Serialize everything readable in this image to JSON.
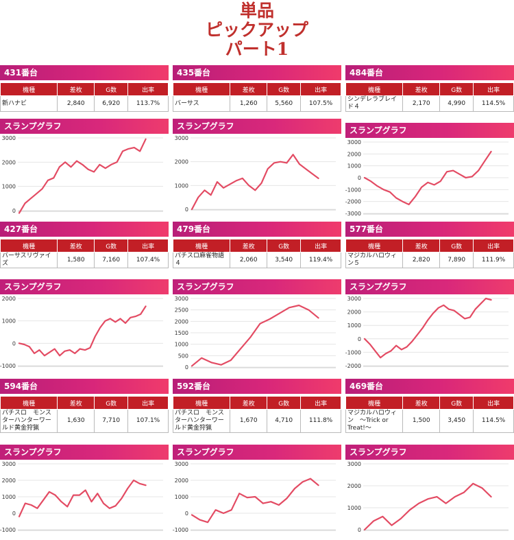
{
  "title_lines": [
    "単品",
    "ピックアップ",
    "パート1"
  ],
  "table_headers": [
    "機種",
    "差枚",
    "G数",
    "出率"
  ],
  "graph_label": "スランプグラフ",
  "line_color": "#e34b63",
  "panels": [
    {
      "machine_no": "431番台",
      "model": "新ハナビ",
      "diff": "2,840",
      "games": "6,920",
      "rate": "113.7%"
    },
    {
      "machine_no": "435番台",
      "model": "バーサス",
      "diff": "1,260",
      "games": "5,560",
      "rate": "107.5%"
    },
    {
      "machine_no": "484番台",
      "model": "シンデレラブレイド４",
      "diff": "2,170",
      "games": "4,990",
      "rate": "114.5%"
    },
    {
      "machine_no": "427番台",
      "model": "バーサスリヴァイズ",
      "diff": "1,580",
      "games": "7,160",
      "rate": "107.4%"
    },
    {
      "machine_no": "479番台",
      "model": "パチスロ麻雀物語４",
      "diff": "2,060",
      "games": "3,540",
      "rate": "119.4%"
    },
    {
      "machine_no": "577番台",
      "model": "マジカルハロウィン５",
      "diff": "2,820",
      "games": "7,890",
      "rate": "111.9%"
    },
    {
      "machine_no": "594番台",
      "model": "パチスロ　モンスターハンターワールド黄金狩猟",
      "diff": "1,630",
      "games": "7,710",
      "rate": "107.1%"
    },
    {
      "machine_no": "592番台",
      "model": "パチスロ　モンスターハンターワールド黄金狩猟",
      "diff": "1,670",
      "games": "4,710",
      "rate": "111.8%"
    },
    {
      "machine_no": "469番台",
      "model": "マジカルハロウィン　～Trick or Treat!～",
      "diff": "1,500",
      "games": "3,450",
      "rate": "114.5%"
    }
  ],
  "chart_data": [
    {
      "type": "line",
      "ylim": [
        0,
        3000
      ],
      "yticks": [
        "3000",
        "2000",
        "1000",
        "0"
      ],
      "y": [
        -100,
        300,
        500,
        700,
        900,
        1250,
        1350,
        1800,
        2000,
        1800,
        2050,
        1900,
        1700,
        1600,
        1900,
        1750,
        1900,
        2000,
        2450,
        2550,
        2600,
        2450,
        2950
      ]
    },
    {
      "type": "line",
      "ylim": [
        0,
        3000
      ],
      "yticks": [
        "3000",
        "2000",
        "1000",
        "0"
      ],
      "y": [
        0,
        500,
        800,
        600,
        1150,
        900,
        1050,
        1200,
        1300,
        1000,
        800,
        1100,
        1700,
        1950,
        2000,
        1950,
        2300,
        1900,
        1700,
        1500,
        1300
      ]
    },
    {
      "type": "line",
      "ylim": [
        -3000,
        3000
      ],
      "yticks": [
        "3000",
        "2000",
        "1000",
        "0",
        "-1000",
        "-2000",
        "-3000"
      ],
      "y": [
        0,
        -300,
        -700,
        -1000,
        -1200,
        -1700,
        -2000,
        -2250,
        -1600,
        -800,
        -400,
        -600,
        -300,
        500,
        600,
        300,
        0,
        100,
        600,
        1400,
        2200
      ]
    },
    {
      "type": "line",
      "ylim": [
        -1000,
        2000
      ],
      "yticks": [
        "2000",
        "1000",
        "0",
        "-1000"
      ],
      "y": [
        0,
        -50,
        -150,
        -450,
        -300,
        -550,
        -400,
        -250,
        -550,
        -350,
        -300,
        -450,
        -250,
        -300,
        -200,
        300,
        700,
        1000,
        1100,
        950,
        1100,
        900,
        1150,
        1200,
        1300,
        1650
      ]
    },
    {
      "type": "line",
      "ylim": [
        0,
        3000
      ],
      "yticks": [
        "3000",
        "2500",
        "2000",
        "1500",
        "1000",
        "500",
        "0"
      ],
      "y": [
        50,
        400,
        200,
        100,
        300,
        800,
        1300,
        1900,
        2100,
        2350,
        2600,
        2700,
        2500,
        2150
      ]
    },
    {
      "type": "line",
      "ylim": [
        -2000,
        3000
      ],
      "yticks": [
        "3000",
        "2000",
        "1000",
        "0",
        "-1000",
        "-2000"
      ],
      "y": [
        0,
        -400,
        -900,
        -1400,
        -1100,
        -900,
        -500,
        -800,
        -600,
        -200,
        300,
        800,
        1400,
        1900,
        2300,
        2500,
        2200,
        2100,
        1800,
        1500,
        1600,
        2200,
        2600,
        3000,
        2900
      ]
    },
    {
      "type": "line",
      "ylim": [
        -1000,
        3000
      ],
      "yticks": [
        "3000",
        "2000",
        "1000",
        "0",
        "-1000"
      ],
      "y": [
        -200,
        600,
        500,
        300,
        800,
        1300,
        1100,
        700,
        400,
        1100,
        1100,
        1400,
        700,
        1200,
        600,
        300,
        450,
        900,
        1500,
        2000,
        1800,
        1700
      ]
    },
    {
      "type": "line",
      "ylim": [
        -1000,
        3000
      ],
      "yticks": [
        "3000",
        "2000",
        "1000",
        "0",
        "-1000"
      ],
      "y": [
        -100,
        -400,
        -550,
        200,
        0,
        200,
        1200,
        950,
        1000,
        600,
        700,
        500,
        900,
        1500,
        1900,
        2100,
        1700
      ]
    },
    {
      "type": "line",
      "ylim": [
        0,
        3000
      ],
      "yticks": [
        "3000",
        "2000",
        "1000",
        "0"
      ],
      "y": [
        0,
        400,
        600,
        200,
        500,
        900,
        1200,
        1400,
        1500,
        1200,
        1500,
        1700,
        2100,
        1900,
        1500
      ]
    }
  ]
}
